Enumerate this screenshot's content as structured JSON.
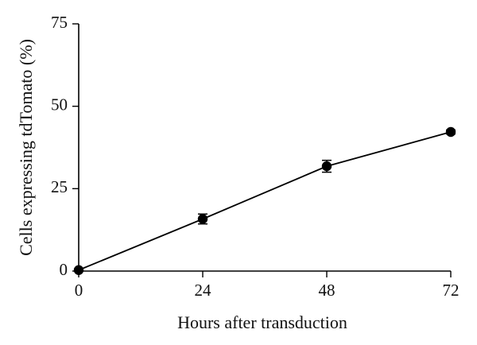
{
  "chart_data": {
    "type": "line",
    "title": "",
    "xlabel": "Hours after transduction",
    "ylabel": "Cells expressing tdTomato (%)",
    "xlim": [
      0,
      72
    ],
    "ylim": [
      0,
      75
    ],
    "x_ticks": [
      0,
      24,
      48,
      72
    ],
    "y_ticks": [
      0,
      25,
      50,
      75
    ],
    "x_tick_labels": [
      "0",
      "24",
      "48",
      "72"
    ],
    "y_tick_labels": [
      "0",
      "25",
      "50",
      "75"
    ],
    "grid": false,
    "legend": "none",
    "series": [
      {
        "x": [
          0,
          24,
          48,
          72
        ],
        "y": [
          0.3,
          15.8,
          31.8,
          42.2
        ],
        "error": [
          0.3,
          1.5,
          1.8,
          0.6
        ],
        "color": "#000000",
        "marker": "circle"
      }
    ]
  }
}
